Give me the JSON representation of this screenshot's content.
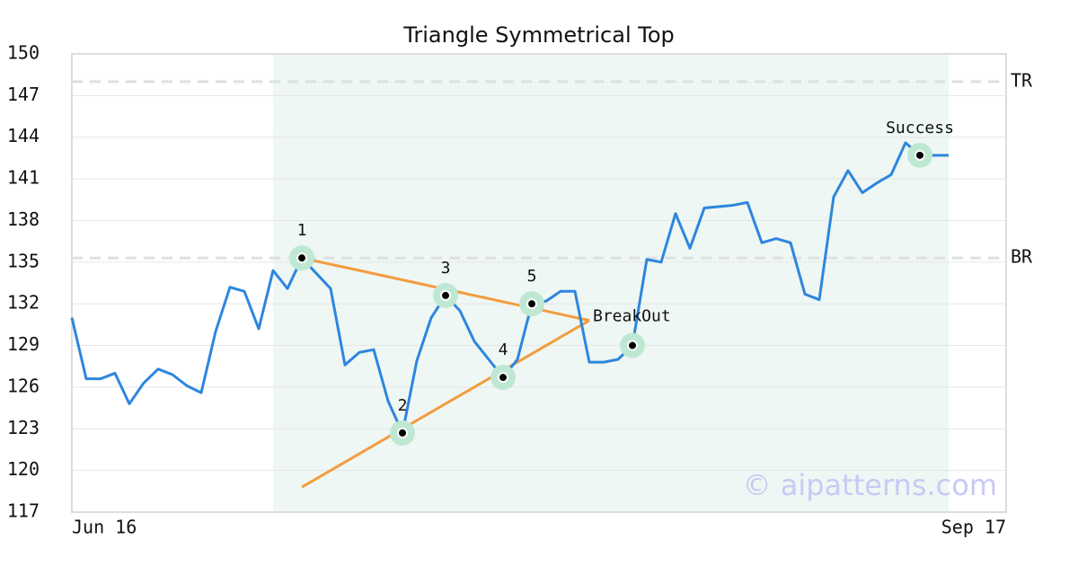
{
  "chart_data": {
    "type": "line",
    "title": "Triangle Symmetrical Top",
    "x": [
      0,
      1,
      2,
      3,
      4,
      5,
      6,
      7,
      8,
      9,
      10,
      11,
      12,
      13,
      14,
      15,
      16,
      17,
      18,
      19,
      20,
      21,
      22,
      23,
      24,
      25,
      26,
      27,
      28,
      29,
      30,
      31,
      32,
      33,
      34,
      35,
      36,
      37,
      38,
      39,
      40,
      41,
      42,
      43,
      44,
      45,
      46,
      47,
      48,
      49,
      50,
      51,
      52,
      53,
      54,
      55,
      56,
      57,
      58,
      59,
      60,
      61
    ],
    "series": [
      {
        "color": "#2e86de",
        "values": [
          131,
          126.6,
          126.6,
          127,
          124.8,
          126.3,
          127.3,
          126.9,
          126.1,
          125.6,
          130,
          133.2,
          132.9,
          130.2,
          134.4,
          133.1,
          135.3,
          134.2,
          133.1,
          127.6,
          128.5,
          128.7,
          125,
          122.7,
          127.9,
          131,
          132.6,
          131.5,
          129.3,
          128,
          126.7,
          128,
          132,
          132.2,
          132.9,
          132.9,
          127.8,
          127.8,
          128,
          129,
          135.2,
          135,
          138.5,
          136,
          138.9,
          139,
          139.1,
          139.3,
          136.4,
          136.7,
          136.4,
          132.7,
          132.3,
          139.7,
          141.6,
          140,
          140.7,
          141.3,
          143.6,
          142.7,
          142.7,
          142.7
        ]
      }
    ],
    "xlim": [
      0,
      65
    ],
    "xticks": [
      {
        "value": 0,
        "label": "Jun 16"
      },
      {
        "value": 65,
        "label": "Sep 17"
      }
    ],
    "ylim": [
      117,
      150
    ],
    "yticks": [
      117,
      120,
      123,
      126,
      129,
      132,
      135,
      138,
      141,
      144,
      147,
      150
    ],
    "grid": true,
    "shaded_range": [
      14,
      61
    ],
    "levels": [
      {
        "label": "TR",
        "value": 148
      },
      {
        "label": "BR",
        "value": 135.3
      }
    ],
    "trend_lines": [
      {
        "color": "#f39c40",
        "x": [
          16,
          36
        ],
        "y": [
          135.3,
          130.8
        ]
      },
      {
        "color": "#f39c40",
        "x": [
          16,
          36
        ],
        "y": [
          118.8,
          130.8
        ]
      }
    ],
    "markers": [
      {
        "x": 16,
        "y": 135.3,
        "label": "1"
      },
      {
        "x": 23,
        "y": 122.7,
        "label": "2"
      },
      {
        "x": 26,
        "y": 132.6,
        "label": "3"
      },
      {
        "x": 30,
        "y": 126.7,
        "label": "4"
      },
      {
        "x": 32,
        "y": 132,
        "label": "5"
      },
      {
        "x": 39,
        "y": 129
      },
      {
        "x": 59,
        "y": 142.7,
        "label": "Success"
      }
    ],
    "annotations": [
      {
        "text": "BreakOut",
        "x": 36,
        "y": 130.8
      }
    ],
    "watermark": "© aipatterns.com"
  }
}
